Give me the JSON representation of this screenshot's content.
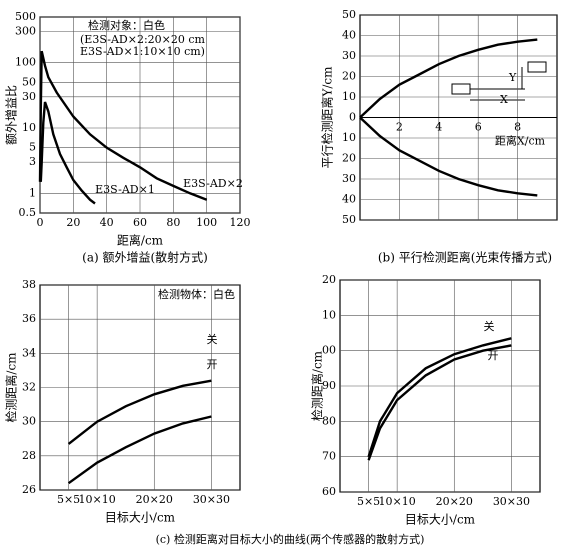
{
  "chart_data": [
    {
      "type": "line",
      "title": "(a) 额外增益(散射方式)",
      "xlabel": "距离/cm",
      "ylabel": "额外增益比",
      "log_y": true,
      "grid": true,
      "xlim": [
        0,
        120
      ],
      "xticks": [
        0,
        20,
        40,
        60,
        80,
        100,
        120
      ],
      "ylim": [
        0.5,
        500
      ],
      "yticks": [
        0.5,
        1,
        3,
        5,
        10,
        30,
        50,
        100,
        300,
        500
      ],
      "annotations": [
        "检测对象：白色",
        "(E3S-AD×2:20×20 cm",
        "E3S-AD×1:10×10 cm)"
      ],
      "series": [
        {
          "name": "E3S-AD×1",
          "color": "#000000",
          "x": [
            0.5,
            1,
            2,
            3,
            5,
            8,
            12,
            16,
            20,
            25,
            30,
            33
          ],
          "values": [
            1.5,
            3,
            12,
            25,
            18,
            8,
            4,
            2.5,
            1.6,
            1.1,
            0.8,
            0.7
          ]
        },
        {
          "name": "E3S-AD×2",
          "color": "#000000",
          "x": [
            0,
            0.5,
            1,
            3,
            5,
            10,
            20,
            30,
            40,
            50,
            60,
            70,
            80,
            90,
            100
          ],
          "values": [
            1.5,
            20,
            150,
            90,
            60,
            35,
            15,
            8,
            5,
            3.5,
            2.5,
            1.7,
            1.3,
            1,
            0.8
          ]
        }
      ]
    },
    {
      "type": "line",
      "title": "(b) 平行检测距离(光束传播方式)",
      "xlabel": "距离X/cm",
      "ylabel": "平行检测距离Y/cm",
      "grid": true,
      "xlim": [
        0,
        10
      ],
      "xticks": [
        2,
        4,
        6,
        8
      ],
      "ylim": [
        -50,
        50
      ],
      "yticks": [
        {
          "value": -50,
          "label": "50"
        },
        {
          "value": -40,
          "label": "40"
        },
        {
          "value": -30,
          "label": "30"
        },
        {
          "value": -20,
          "label": "20"
        },
        {
          "value": -10,
          "label": "10"
        },
        0,
        10,
        20,
        30,
        40,
        50
      ],
      "annotations": [
        "Y",
        "X"
      ],
      "series": [
        {
          "color": "#000000",
          "x": [
            0,
            1,
            2,
            3,
            4,
            5,
            6,
            7,
            8,
            9
          ],
          "values": [
            0,
            9,
            16,
            21,
            26,
            30,
            33,
            35.5,
            37,
            38
          ]
        },
        {
          "color": "#000000",
          "x": [
            0,
            1,
            2,
            3,
            4,
            5,
            6,
            7,
            8,
            9
          ],
          "values": [
            0,
            -9,
            -16,
            -21,
            -26,
            -30,
            -33,
            -35.5,
            -37,
            -38
          ]
        }
      ]
    },
    {
      "type": "line",
      "xlabel": "目标大小/cm",
      "ylabel": "检测距离/cm",
      "grid": true,
      "xlim": [
        0,
        35
      ],
      "xticks": [
        {
          "value": 5,
          "label": "5×5"
        },
        {
          "value": 10,
          "label": "10×10"
        },
        {
          "value": 20,
          "label": "20×20"
        },
        {
          "value": 30,
          "label": "30×30"
        }
      ],
      "ylim": [
        26,
        38
      ],
      "yticks": [
        26,
        28,
        30,
        32,
        34,
        36,
        38
      ],
      "annotations": [
        "检测物体：白色"
      ],
      "series": [
        {
          "name": "关",
          "color": "#000000",
          "x": [
            5,
            10,
            15,
            20,
            25,
            30
          ],
          "values": [
            28.7,
            30,
            30.9,
            31.6,
            32.1,
            32.4
          ]
        },
        {
          "name": "开",
          "color": "#000000",
          "x": [
            5,
            10,
            15,
            20,
            25,
            30
          ],
          "values": [
            26.4,
            27.6,
            28.5,
            29.3,
            29.9,
            30.3
          ]
        }
      ]
    },
    {
      "type": "line",
      "xlabel": "目标大小/cm",
      "ylabel": "检测距离/cm",
      "grid": true,
      "xlim": [
        0,
        35
      ],
      "xticks": [
        {
          "value": 5,
          "label": "5×5"
        },
        {
          "value": 10,
          "label": "10×10"
        },
        {
          "value": 20,
          "label": "20×20"
        },
        {
          "value": 30,
          "label": "30×30"
        }
      ],
      "ylim": [
        60,
        120
      ],
      "yticks": [
        60,
        70,
        80,
        90,
        {
          "value": 100,
          "label": "00"
        },
        {
          "value": 110,
          "label": "10"
        },
        {
          "value": 120,
          "label": "20"
        }
      ],
      "series": [
        {
          "name": "关",
          "color": "#000000",
          "x": [
            5,
            7,
            10,
            15,
            20,
            25,
            30
          ],
          "values": [
            70,
            80,
            88,
            95,
            99,
            101.5,
            103.5
          ]
        },
        {
          "name": "开",
          "color": "#000000",
          "x": [
            5,
            7,
            10,
            15,
            20,
            25,
            30
          ],
          "values": [
            69,
            78,
            86,
            93,
            97.5,
            100,
            101.5
          ]
        }
      ]
    }
  ],
  "caption": "(c) 检测距离对目标大小的曲线(两个传感器的散射方式)"
}
